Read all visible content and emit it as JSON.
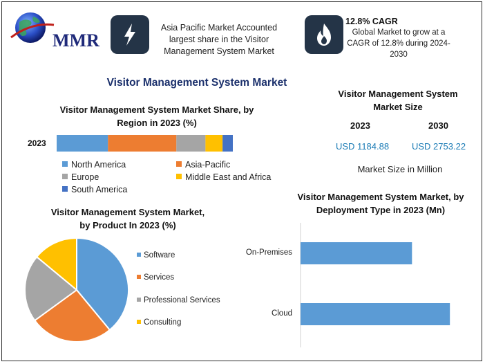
{
  "header": {
    "logo_text": "MMR",
    "asia_text_lines": [
      "Asia Pacific Market Accounted",
      "largest share in the Visitor",
      "Management System Market"
    ],
    "cagr_title": "12.8% CAGR",
    "cagr_text_lines": [
      "Global Market to grow at a",
      "CAGR of 12.8% during 2024-",
      "2030"
    ]
  },
  "title": "Visitor Management System Market",
  "market_size": {
    "title_lines": [
      "Visitor Management System",
      "Market Size"
    ],
    "year1": "2023",
    "year2": "2030",
    "value1": "USD 1184.88",
    "value2": "USD 2753.22",
    "note": "Market Size in Million"
  },
  "colors": {
    "blue": "#5b9bd5",
    "orange": "#ed7d31",
    "gray": "#a5a5a5",
    "yellow": "#ffc000",
    "darkblue": "#4472c4",
    "icon_box": "#243447"
  },
  "chart_data": [
    {
      "type": "bar",
      "orientation": "horizontal-stacked",
      "title_lines": [
        "Visitor Management System Market Share, by",
        "Region in 2023 (%)"
      ],
      "categories": [
        "2023"
      ],
      "series": [
        {
          "name": "North America",
          "values": [
            30
          ],
          "color": "#5b9bd5"
        },
        {
          "name": "Asia-Pacific",
          "values": [
            40
          ],
          "color": "#ed7d31"
        },
        {
          "name": "Europe",
          "values": [
            17
          ],
          "color": "#a5a5a5"
        },
        {
          "name": "Middle East and Africa",
          "values": [
            10
          ],
          "color": "#ffc000"
        },
        {
          "name": "South America",
          "values": [
            6
          ],
          "color": "#4472c4"
        }
      ],
      "legend": "bottom"
    },
    {
      "type": "pie",
      "title_lines": [
        "Visitor Management System Market,",
        "by Product In 2023 (%)"
      ],
      "slices": [
        {
          "name": "Software",
          "value": 39,
          "color": "#5b9bd5"
        },
        {
          "name": "Services",
          "value": 26,
          "color": "#ed7d31"
        },
        {
          "name": "Professional Services",
          "value": 21,
          "color": "#a5a5a5"
        },
        {
          "name": "Consulting",
          "value": 14,
          "color": "#ffc000"
        }
      ],
      "legend": "right"
    },
    {
      "type": "bar",
      "orientation": "horizontal",
      "title_lines": [
        "Visitor Management System Market, by",
        "Deployment Type in 2023 (Mn)"
      ],
      "categories": [
        "On-Premises",
        "Cloud"
      ],
      "values": [
        500,
        670
      ],
      "xlim": [
        0,
        750
      ],
      "color": "#5b9bd5",
      "legend": "none"
    }
  ]
}
